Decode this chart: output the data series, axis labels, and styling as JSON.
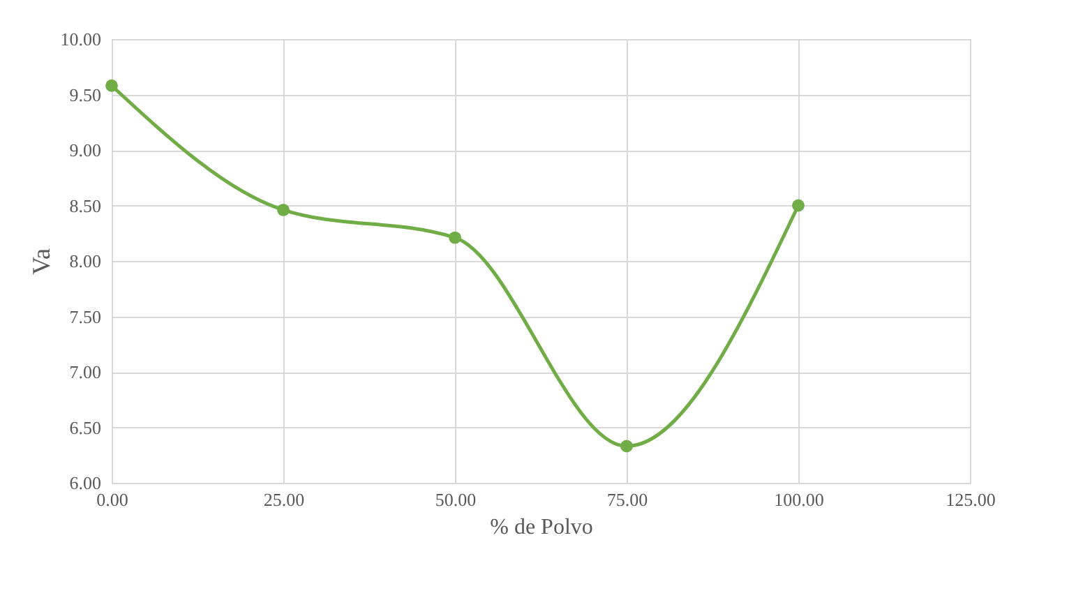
{
  "chart_data": {
    "type": "line",
    "xlabel": "% de Polvo",
    "ylabel": "Va",
    "x": [
      0,
      25,
      50,
      75,
      100
    ],
    "series": [
      {
        "color": "#70ad47",
        "values": [
          9.58,
          8.46,
          8.21,
          6.33,
          8.5
        ]
      }
    ],
    "xlim": [
      0,
      125
    ],
    "xticks": [
      {
        "value": 0,
        "label": "0.00"
      },
      {
        "value": 25,
        "label": "25.00"
      },
      {
        "value": 50,
        "label": "50.00"
      },
      {
        "value": 75,
        "label": "75.00"
      },
      {
        "value": 100,
        "label": "100.00"
      },
      {
        "value": 125,
        "label": "125.00"
      }
    ],
    "ylim": [
      6,
      10
    ],
    "yticks": [
      {
        "value": 6,
        "label": "6.00"
      },
      {
        "value": 6.5,
        "label": "6.50"
      },
      {
        "value": 7,
        "label": "7.00"
      },
      {
        "value": 7.5,
        "label": "7.50"
      },
      {
        "value": 8,
        "label": "8.00"
      },
      {
        "value": 8.5,
        "label": "8.50"
      },
      {
        "value": 9,
        "label": "9.00"
      },
      {
        "value": 9.5,
        "label": "9.50"
      },
      {
        "value": 10,
        "label": "10.00"
      }
    ],
    "grid": true,
    "marker": "circle",
    "line_style": "solid",
    "legend": false
  }
}
